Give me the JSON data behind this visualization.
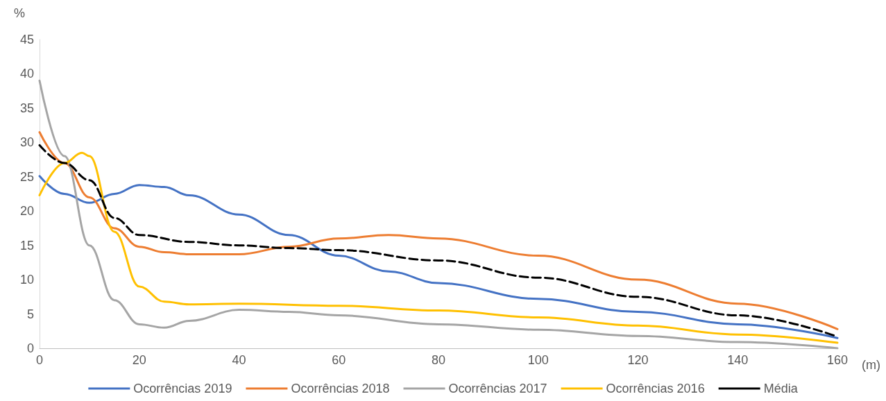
{
  "chart_data": {
    "type": "line",
    "ylabel": "%",
    "xlabel": "(m)",
    "xlim": [
      0,
      160
    ],
    "xticks": [
      0,
      20,
      40,
      60,
      80,
      100,
      120,
      140,
      160
    ],
    "ylim": [
      0,
      45
    ],
    "yticks": [
      0,
      5,
      10,
      15,
      20,
      25,
      30,
      35,
      40,
      45
    ],
    "grid": false,
    "legend": "bottom",
    "marker": "none",
    "series": [
      {
        "name": "Ocorrências 2019",
        "color": "#4472c4",
        "x": [
          0,
          5,
          10,
          15,
          20,
          25,
          30,
          40,
          50,
          60,
          70,
          80,
          100,
          120,
          140,
          160
        ],
        "values": [
          25.1,
          22.5,
          21.2,
          22.5,
          23.8,
          23.5,
          22.3,
          19.5,
          16.5,
          13.5,
          11.2,
          9.5,
          7.2,
          5.3,
          3.5,
          1.5
        ]
      },
      {
        "name": "Ocorrências 2018",
        "color": "#ed7d31",
        "x": [
          0,
          5,
          10,
          15,
          20,
          25,
          30,
          40,
          50,
          60,
          70,
          80,
          100,
          120,
          140,
          160
        ],
        "values": [
          31.5,
          27,
          22,
          17.5,
          14.8,
          14,
          13.7,
          13.7,
          14.8,
          16,
          16.5,
          16,
          13.5,
          10,
          6.5,
          2.8
        ]
      },
      {
        "name": "Ocorrências 2017",
        "color": "#a5a5a5",
        "x": [
          0,
          5,
          10,
          15,
          20,
          25,
          30,
          40,
          50,
          60,
          80,
          100,
          120,
          140,
          160
        ],
        "values": [
          39,
          28,
          15,
          7,
          3.5,
          3,
          4,
          5.6,
          5.3,
          4.8,
          3.5,
          2.7,
          1.8,
          0.9,
          0
        ]
      },
      {
        "name": "Ocorrências 2016",
        "color": "#ffc000",
        "x": [
          0,
          5,
          8.5,
          10,
          15,
          20,
          25,
          30,
          40,
          60,
          80,
          100,
          120,
          140,
          160
        ],
        "values": [
          22.3,
          27,
          28.5,
          28,
          17,
          9,
          6.8,
          6.4,
          6.5,
          6.2,
          5.5,
          4.5,
          3.3,
          2,
          0.8
        ]
      },
      {
        "name": "Média",
        "color": "#000000",
        "line_style": "dashed",
        "x": [
          0,
          5,
          10,
          15,
          20,
          30,
          40,
          50,
          60,
          80,
          100,
          120,
          140,
          160
        ],
        "values": [
          29.6,
          27,
          24.5,
          19,
          16.5,
          15.5,
          15,
          14.6,
          14.3,
          12.8,
          10.3,
          7.5,
          4.8,
          1.7
        ]
      }
    ]
  }
}
